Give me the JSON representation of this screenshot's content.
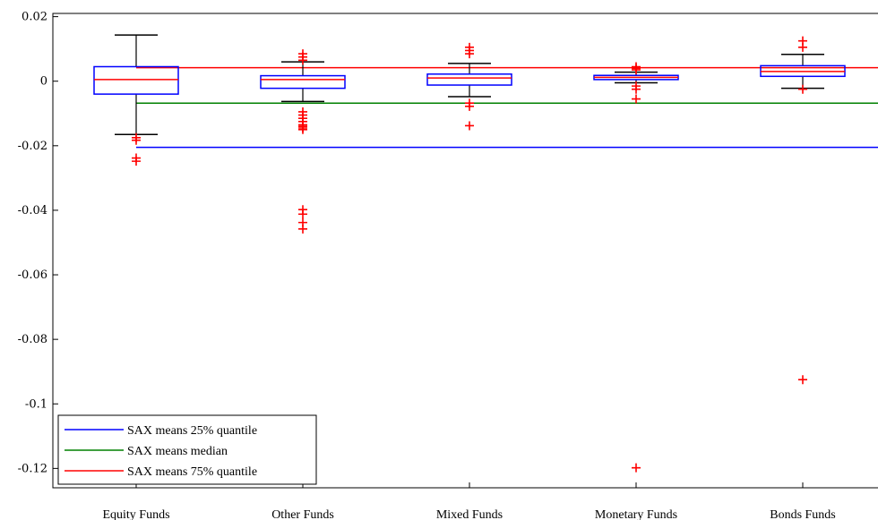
{
  "chart_data": {
    "type": "box",
    "title": "",
    "xlabel": "",
    "ylabel": "",
    "ylim": [
      -0.126,
      0.021
    ],
    "yticks": [
      0.02,
      0,
      -0.02,
      -0.04,
      -0.06,
      -0.08,
      -0.1,
      -0.12
    ],
    "ytick_labels": [
      "0.02",
      "0",
      "-0.02",
      "-0.04",
      "-0.06",
      "-0.08",
      "-0.1",
      "-0.12"
    ],
    "categories": [
      "Equity Funds",
      "Other Funds",
      "Mixed Funds",
      "Monetary Funds",
      "Bonds Funds"
    ],
    "boxes": [
      {
        "category": "Equity Funds",
        "whisker_low": -0.0165,
        "q1": -0.004,
        "median": 0.0005,
        "q3": 0.0045,
        "whisker_high": 0.0143,
        "outliers": [
          -0.0175,
          -0.0183,
          -0.0238,
          -0.0248
        ]
      },
      {
        "category": "Other Funds",
        "whisker_low": -0.0063,
        "q1": -0.0022,
        "median": 0.0005,
        "q3": 0.0017,
        "whisker_high": 0.006,
        "outliers": [
          0.0085,
          0.0075,
          0.0065,
          -0.0095,
          -0.0105,
          -0.0115,
          -0.0125,
          -0.0135,
          -0.014,
          -0.0145,
          -0.015,
          -0.0398,
          -0.0412,
          -0.0438,
          -0.0458
        ]
      },
      {
        "category": "Mixed Funds",
        "whisker_low": -0.0048,
        "q1": -0.0012,
        "median": 0.001,
        "q3": 0.0022,
        "whisker_high": 0.0055,
        "outliers": [
          0.0105,
          0.0095,
          0.0085,
          -0.0068,
          -0.0078,
          -0.0138
        ]
      },
      {
        "category": "Monetary Funds",
        "whisker_low": -0.0005,
        "q1": 0.0005,
        "median": 0.0012,
        "q3": 0.0018,
        "whisker_high": 0.0028,
        "outliers": [
          0.0045,
          0.004,
          0.0035,
          -0.0015,
          -0.0025,
          -0.0055,
          -0.1198
        ]
      },
      {
        "category": "Bonds Funds",
        "whisker_low": -0.0022,
        "q1": 0.0015,
        "median": 0.003,
        "q3": 0.0048,
        "whisker_high": 0.0083,
        "outliers": [
          0.0125,
          0.0105,
          -0.0025,
          -0.0925
        ]
      }
    ],
    "reference_lines": [
      {
        "name": "SAX means 25% quantile",
        "value": -0.0205,
        "color": "#0000ff",
        "x_start_category": "Equity Funds"
      },
      {
        "name": "SAX means median",
        "value": -0.0068,
        "color": "#008000",
        "x_start_category": "Equity Funds"
      },
      {
        "name": "SAX means 75% quantile",
        "value": 0.0042,
        "color": "#ff0000",
        "x_start_category": "Equity Funds"
      }
    ],
    "legend": {
      "placement": "bottom-left",
      "entries": [
        {
          "label": "SAX means 25% quantile",
          "color": "#0000ff"
        },
        {
          "label": "SAX means median",
          "color": "#008000"
        },
        {
          "label": "SAX means 75% quantile",
          "color": "#ff0000"
        }
      ]
    },
    "colors": {
      "box": "#0000ff",
      "median": "#ff0000",
      "whisker": "#000000",
      "outlier": "#ff0000"
    },
    "grid": false
  }
}
